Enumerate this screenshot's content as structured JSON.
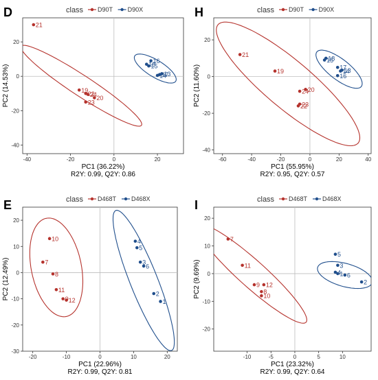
{
  "colors": {
    "T": "#b5322c",
    "X": "#1f4e8c",
    "ref": "#bdbdbd"
  },
  "chart_data": [
    {
      "type": "scatter",
      "panel": "D",
      "legend_title": "class",
      "legend_labels": [
        "D90T",
        "D90X"
      ],
      "legend_position": "top",
      "xlabel": "PC1 (36.22%)",
      "ylabel": "PC2 (14.53%)",
      "subtitle": "R2Y: 0.99, Q2Y: 0.86",
      "xlim": [
        -42,
        32
      ],
      "ylim": [
        -45,
        34
      ],
      "xticks": [
        -40,
        -20,
        0,
        20
      ],
      "yticks": [
        -40,
        -20,
        0,
        20
      ],
      "ellipses": [
        {
          "group": "T",
          "cx": -15,
          "cy": -5.5,
          "rx": 36,
          "ry": 5.5,
          "angle_deg": -40
        },
        {
          "group": "X",
          "cx": 19,
          "cy": 4.5,
          "rx": 12,
          "ry": 4.5,
          "angle_deg": -40
        }
      ],
      "points": [
        {
          "group": "T",
          "label": "21",
          "x": -37,
          "y": 30
        },
        {
          "group": "T",
          "label": "19",
          "x": -16,
          "y": -8
        },
        {
          "group": "T",
          "label": "22",
          "x": -13,
          "y": -10
        },
        {
          "group": "T",
          "label": "24",
          "x": -12,
          "y": -10.5
        },
        {
          "group": "T",
          "label": "20",
          "x": -9,
          "y": -12.5
        },
        {
          "group": "T",
          "label": "23",
          "x": -13,
          "y": -15
        },
        {
          "group": "X",
          "label": "16",
          "x": 17,
          "y": 9
        },
        {
          "group": "X",
          "label": "18",
          "x": 15,
          "y": 7
        },
        {
          "group": "X",
          "label": "15",
          "x": 16,
          "y": 6
        },
        {
          "group": "X",
          "label": "13",
          "x": 22,
          "y": 1.5
        },
        {
          "group": "X",
          "label": "14",
          "x": 20,
          "y": 0.5
        },
        {
          "group": "X",
          "label": "17",
          "x": 21,
          "y": 1
        }
      ]
    },
    {
      "type": "scatter",
      "panel": "H",
      "legend_title": "class",
      "legend_labels": [
        "D90T",
        "D90X"
      ],
      "legend_position": "top",
      "xlabel": "PC1 (55.95%)",
      "ylabel": "PC2 (11.60%)",
      "subtitle": "R2Y: 0.95, Q2Y: 0.57",
      "xlim": [
        -66,
        42
      ],
      "ylim": [
        -42,
        32
      ],
      "xticks": [
        -60,
        -40,
        -20,
        0,
        20,
        40
      ],
      "yticks": [
        -40,
        -20,
        0,
        20
      ],
      "ellipses": [
        {
          "group": "T",
          "cx": -15,
          "cy": -4,
          "rx": 58,
          "ry": 14,
          "angle_deg": -33
        },
        {
          "group": "X",
          "cx": 20,
          "cy": 4,
          "rx": 18,
          "ry": 6,
          "angle_deg": -30
        }
      ],
      "points": [
        {
          "group": "T",
          "label": "21",
          "x": -48,
          "y": 12
        },
        {
          "group": "T",
          "label": "19",
          "x": -24,
          "y": 3
        },
        {
          "group": "T",
          "label": "24",
          "x": -7,
          "y": -8
        },
        {
          "group": "T",
          "label": "20",
          "x": -3,
          "y": -7
        },
        {
          "group": "T",
          "label": "22",
          "x": -8,
          "y": -16
        },
        {
          "group": "T",
          "label": "23",
          "x": -7,
          "y": -15
        },
        {
          "group": "X",
          "label": "18",
          "x": 11,
          "y": 10
        },
        {
          "group": "X",
          "label": "15",
          "x": 10,
          "y": 9
        },
        {
          "group": "X",
          "label": "17",
          "x": 19,
          "y": 5
        },
        {
          "group": "X",
          "label": "13",
          "x": 22,
          "y": 3.5
        },
        {
          "group": "X",
          "label": "14",
          "x": 21,
          "y": 3
        },
        {
          "group": "X",
          "label": "16",
          "x": 19,
          "y": 0.5
        }
      ]
    },
    {
      "type": "scatter",
      "panel": "E",
      "legend_title": "class",
      "legend_labels": [
        "D468T",
        "D468X"
      ],
      "legend_position": "top",
      "xlabel": "PC1 (22.96%)",
      "ylabel": "PC2 (12.49%)",
      "subtitle": "R2Y: 0.99, Q2Y: 0.81",
      "xlim": [
        -23,
        23
      ],
      "ylim": [
        -30,
        25
      ],
      "xticks": [
        -20,
        -10,
        0,
        10,
        20
      ],
      "yticks": [
        -30,
        -20,
        -10,
        0,
        10,
        20
      ],
      "ellipses": [
        {
          "group": "T",
          "cx": -13,
          "cy": 2,
          "rx": 19,
          "ry": 7.5,
          "angle_deg": -82
        },
        {
          "group": "X",
          "cx": 13,
          "cy": -3,
          "rx": 28,
          "ry": 4.2,
          "angle_deg": -73
        }
      ],
      "points": [
        {
          "group": "T",
          "label": "10",
          "x": -15,
          "y": 13
        },
        {
          "group": "T",
          "label": "7",
          "x": -17,
          "y": 4
        },
        {
          "group": "T",
          "label": "8",
          "x": -14,
          "y": -0.5
        },
        {
          "group": "T",
          "label": "11",
          "x": -13,
          "y": -6.5
        },
        {
          "group": "T",
          "label": "9",
          "x": -11,
          "y": -10
        },
        {
          "group": "T",
          "label": "12",
          "x": -10,
          "y": -10.5
        },
        {
          "group": "X",
          "label": "4",
          "x": 10.5,
          "y": 12
        },
        {
          "group": "X",
          "label": "5",
          "x": 11,
          "y": 9.5
        },
        {
          "group": "X",
          "label": "3",
          "x": 12,
          "y": 4
        },
        {
          "group": "X",
          "label": "6",
          "x": 13,
          "y": 2.5
        },
        {
          "group": "X",
          "label": "2",
          "x": 16,
          "y": -8
        },
        {
          "group": "X",
          "label": "1",
          "x": 18,
          "y": -11
        }
      ]
    },
    {
      "type": "scatter",
      "panel": "I",
      "legend_title": "class",
      "legend_labels": [
        "D468T",
        "D468X"
      ],
      "legend_position": "top",
      "xlabel": "PC1 (23.32%)",
      "ylabel": "PC2 (9.69%)",
      "subtitle": "R2Y: 0.99, Q2Y: 0.64",
      "xlim": [
        -17,
        16
      ],
      "ylim": [
        -28,
        24
      ],
      "xticks": [
        -10,
        -5,
        0,
        5,
        10
      ],
      "yticks": [
        -20,
        -10,
        0,
        10,
        20
      ],
      "ellipses": [
        {
          "group": "T",
          "cx": -9,
          "cy": 0,
          "rx": 21,
          "ry": 3.5,
          "angle_deg": -58
        },
        {
          "group": "X",
          "cx": 10.5,
          "cy": -0.5,
          "rx": 6.5,
          "ry": 3.8,
          "angle_deg": -35
        }
      ],
      "points": [
        {
          "group": "T",
          "label": "7",
          "x": -14,
          "y": 12.5
        },
        {
          "group": "T",
          "label": "11",
          "x": -11,
          "y": 3
        },
        {
          "group": "T",
          "label": "9",
          "x": -8.5,
          "y": -4
        },
        {
          "group": "T",
          "label": "12",
          "x": -6.5,
          "y": -4
        },
        {
          "group": "T",
          "label": "8",
          "x": -7,
          "y": -6.5
        },
        {
          "group": "T",
          "label": "10",
          "x": -7,
          "y": -8
        },
        {
          "group": "X",
          "label": "5",
          "x": 8.5,
          "y": 7
        },
        {
          "group": "X",
          "label": "3",
          "x": 9,
          "y": 3
        },
        {
          "group": "X",
          "label": "4",
          "x": 8.5,
          "y": 0.5
        },
        {
          "group": "X",
          "label": "1",
          "x": 9,
          "y": 0
        },
        {
          "group": "X",
          "label": "6",
          "x": 10.5,
          "y": -0.5
        },
        {
          "group": "X",
          "label": "2",
          "x": 14,
          "y": -3
        }
      ]
    }
  ]
}
